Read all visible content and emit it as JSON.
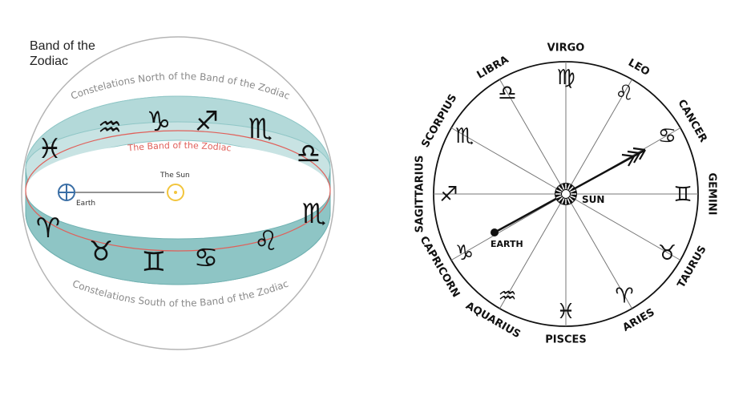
{
  "left_diagram": {
    "title_line1": "Band of the",
    "title_line2": "Zodiac",
    "north_label": "Constelations North of the Band of the Zodiac",
    "south_label": "Constelations South of the Band of the Zodiac",
    "band_label": "The Band of the Zodiac",
    "sun_label": "The Sun",
    "earth_label": "Earth",
    "earth_symbol": "⊕",
    "sun_symbol": "☉",
    "band_signs": [
      {
        "sign": "pisces",
        "glyph": "♓"
      },
      {
        "sign": "aquarius",
        "glyph": "♒"
      },
      {
        "sign": "capricorn",
        "glyph": "♑"
      },
      {
        "sign": "sagittarius",
        "glyph": "♐"
      },
      {
        "sign": "scorpio-back",
        "glyph": "♏"
      },
      {
        "sign": "libra",
        "glyph": "♎"
      },
      {
        "sign": "scorpio",
        "glyph": "♏"
      },
      {
        "sign": "aries",
        "glyph": "♈"
      },
      {
        "sign": "taurus",
        "glyph": "♉"
      },
      {
        "sign": "gemini",
        "glyph": "♊"
      },
      {
        "sign": "cancer",
        "glyph": "♋"
      },
      {
        "sign": "leo",
        "glyph": "♌"
      }
    ],
    "colors": {
      "band": "#a9d2d2",
      "band_edge": "#7cbcbc",
      "ecliptic": "#e0605a",
      "sun": "#f2c53d",
      "earth": "#3a6ea5",
      "label_grey": "#8a8a8a"
    }
  },
  "right_diagram": {
    "center_label": "SUN",
    "earth_label": "EARTH",
    "signs": [
      {
        "name": "VIRGO",
        "glyph": "♍"
      },
      {
        "name": "LEO",
        "glyph": "♌"
      },
      {
        "name": "CANCER",
        "glyph": "♋"
      },
      {
        "name": "GEMINI",
        "glyph": "♊"
      },
      {
        "name": "TAURUS",
        "glyph": "♉"
      },
      {
        "name": "ARIES",
        "glyph": "♈"
      },
      {
        "name": "PISCES",
        "glyph": "♓"
      },
      {
        "name": "AQUARIUS",
        "glyph": "♒"
      },
      {
        "name": "CAPRICORN",
        "glyph": "♑"
      },
      {
        "name": "SAGITTARIUS",
        "glyph": "♐"
      },
      {
        "name": "SCORPIUS",
        "glyph": "♏"
      },
      {
        "name": "LIBRA",
        "glyph": "♎"
      }
    ]
  }
}
